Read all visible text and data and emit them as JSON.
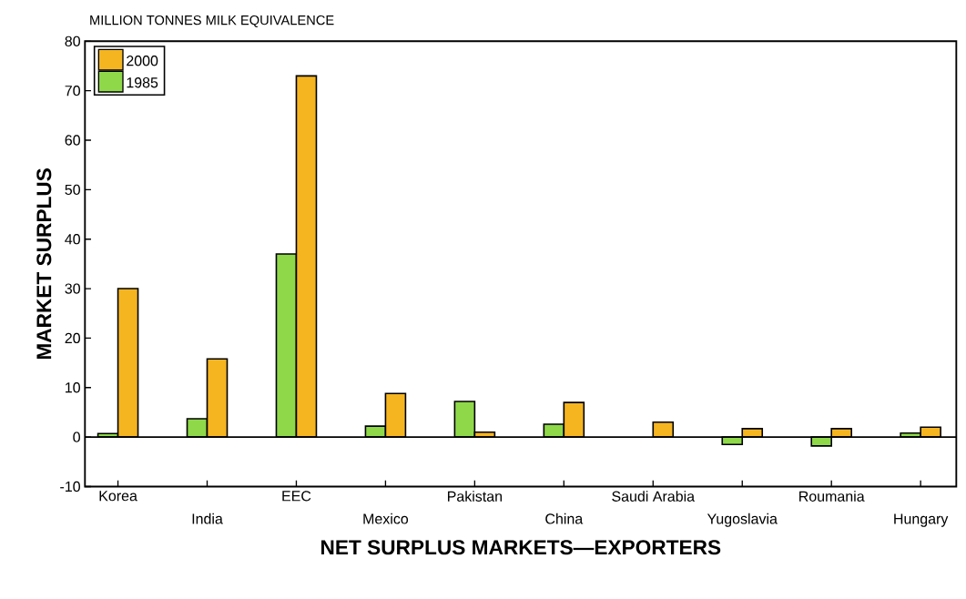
{
  "chart_data": {
    "type": "bar",
    "title": "MILLION TONNES MILK EQUIVALENCE",
    "xlabel": "NET SURPLUS MARKETS—EXPORTERS",
    "ylabel": "MARKET SURPLUS",
    "categories": [
      "Korea",
      "India",
      "EEC",
      "Mexico",
      "Pakistan",
      "China",
      "Saudi Arabia",
      "Yugoslavia",
      "Roumania",
      "Hungary"
    ],
    "series": [
      {
        "name": "1985",
        "color": "#8ed84a",
        "values": [
          0.7,
          3.7,
          37,
          2.2,
          7.2,
          2.6,
          null,
          -1.5,
          -1.8,
          0.8
        ]
      },
      {
        "name": "2000",
        "color": "#f5b521",
        "values": [
          30,
          15.8,
          73,
          8.8,
          1,
          7,
          3,
          1.7,
          1.7,
          2
        ]
      }
    ],
    "ylim": [
      -10,
      80
    ],
    "yticks": [
      -10,
      0,
      10,
      20,
      30,
      40,
      50,
      60,
      70,
      80
    ],
    "grid": false,
    "legend": "top left",
    "ref_lines": [
      {
        "axis": "y",
        "value": 0
      }
    ]
  }
}
